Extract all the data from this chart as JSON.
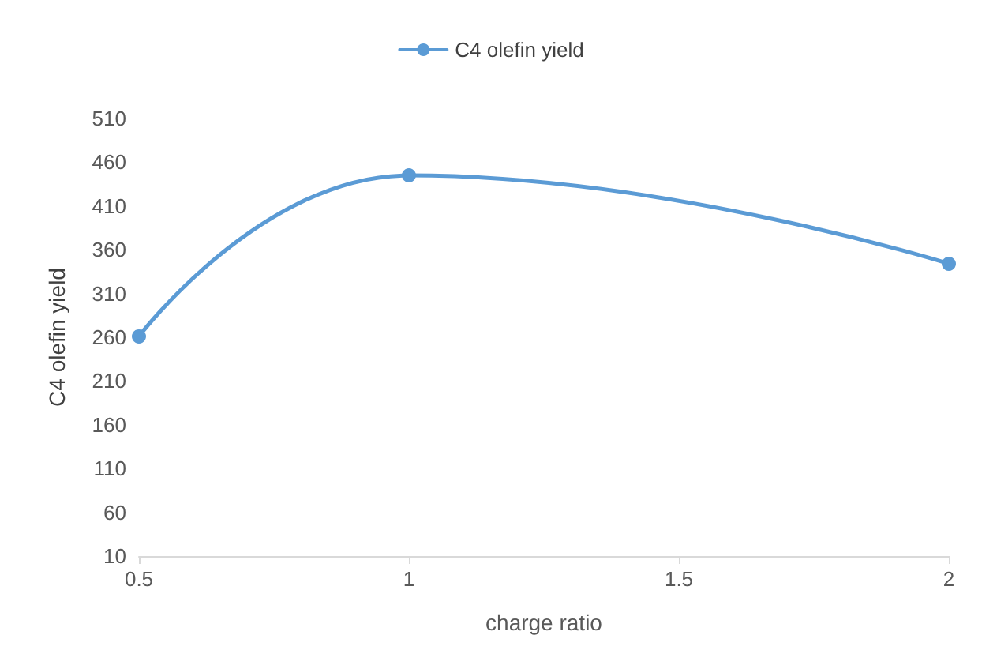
{
  "chart_data": {
    "type": "line",
    "xlabel": "charge ratio",
    "ylabel": "C4 olefin yield",
    "x": [
      0.5,
      1,
      2
    ],
    "series": [
      {
        "name": "C4 olefin yield",
        "color": "#5b9bd5",
        "values": [
          261,
          445,
          344
        ]
      }
    ],
    "xlim": [
      0.5,
      2
    ],
    "xticks": [
      0.5,
      1,
      1.5,
      2
    ],
    "ylim": [
      10,
      510
    ],
    "yticks": [
      10,
      60,
      110,
      160,
      210,
      260,
      310,
      360,
      410,
      460,
      510
    ],
    "grid": false,
    "legend": "top",
    "marker": "circle",
    "line_style": "solid"
  }
}
